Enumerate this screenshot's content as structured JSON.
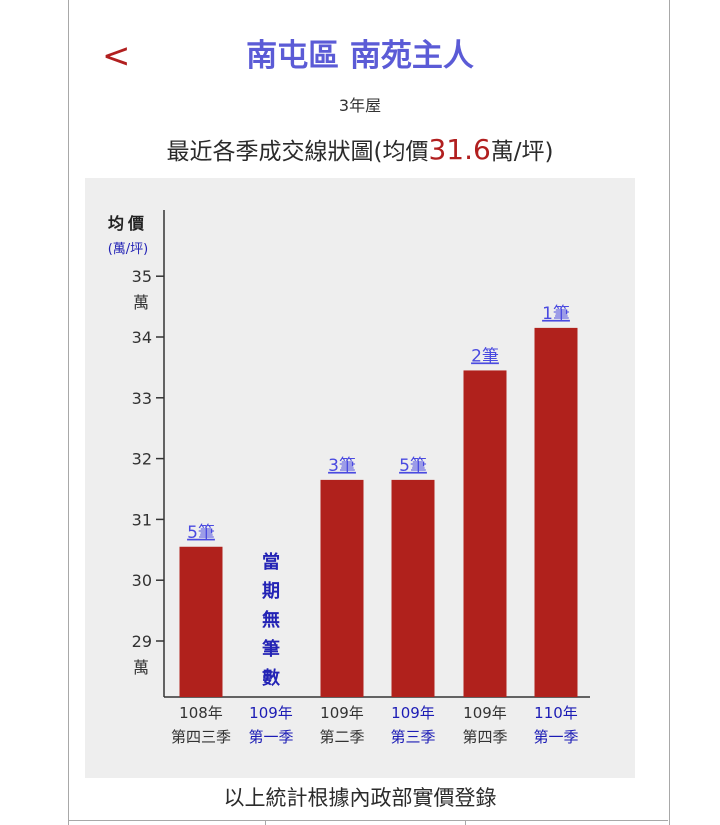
{
  "header": {
    "back_label": "<",
    "title": "南屯區 南苑主人",
    "subtitle": "3年屋",
    "heading_prefix": "最近各季成交線狀圖(均價",
    "heading_avg": "31.6",
    "heading_suffix": "萬/坪)"
  },
  "footer": {
    "text": "以上統計根據內政部實價登錄"
  },
  "colors": {
    "bar": "#b0211c",
    "link": "#4a4ae0",
    "title": "#5b5bd6",
    "accent_red": "#b11f1f",
    "panel": "#eeeeee"
  },
  "chart_data": {
    "type": "bar",
    "ylabel": "均價",
    "yunit": "(萬/坪)",
    "ylim": [
      28.4,
      36.0
    ],
    "y_ticks": [
      {
        "value": 35,
        "label": "35",
        "unit": "萬"
      },
      {
        "value": 34,
        "label": "34"
      },
      {
        "value": 33,
        "label": "33"
      },
      {
        "value": 32,
        "label": "32"
      },
      {
        "value": 31,
        "label": "31"
      },
      {
        "value": 30,
        "label": "30"
      },
      {
        "value": 29,
        "label": "29",
        "unit": "萬"
      }
    ],
    "categories": [
      {
        "line1": "108年",
        "line2": "第四三季",
        "highlight": false
      },
      {
        "line1": "109年",
        "line2": "第一季",
        "highlight": true
      },
      {
        "line1": "109年",
        "line2": "第二季",
        "highlight": false
      },
      {
        "line1": "109年",
        "line2": "第三季",
        "highlight": true
      },
      {
        "line1": "109年",
        "line2": "第四季",
        "highlight": false
      },
      {
        "line1": "110年",
        "line2": "第一季",
        "highlight": true
      }
    ],
    "values": [
      30.55,
      null,
      31.65,
      31.65,
      33.45,
      34.15
    ],
    "bar_labels": [
      "5筆",
      "",
      "3筆",
      "5筆",
      "2筆",
      "1筆"
    ],
    "no_data_text": [
      "當",
      "期",
      "無",
      "筆",
      "數"
    ]
  }
}
